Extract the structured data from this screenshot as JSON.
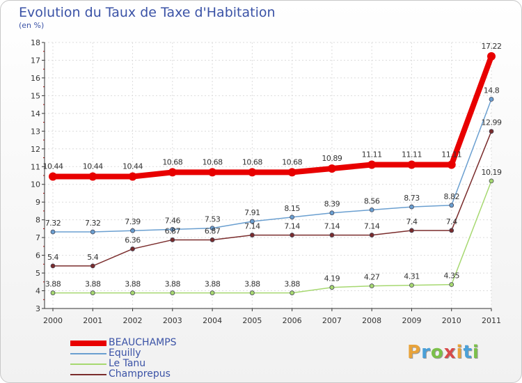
{
  "title": "Evolution du Taux de Taxe d'Habitation",
  "subtitle": "(en %)",
  "chart_data": {
    "type": "line",
    "title": "Evolution du Taux de Taxe d'Habitation",
    "subtitle": "(en %)",
    "xlabel": "",
    "ylabel": "",
    "x": [
      "2000",
      "2001",
      "2002",
      "2003",
      "2004",
      "2005",
      "2006",
      "2007",
      "2008",
      "2009",
      "2010",
      "2011"
    ],
    "ylim": [
      3,
      18
    ],
    "yticks": [
      3,
      4,
      5,
      6,
      7,
      8,
      9,
      10,
      11,
      12,
      13,
      14,
      15,
      16,
      17,
      18
    ],
    "grid": true,
    "legend_position": "bottom-left",
    "series": [
      {
        "name": "BEAUCHAMPS",
        "color": "#e80000",
        "values": [
          10.44,
          10.44,
          10.44,
          10.68,
          10.68,
          10.68,
          10.68,
          10.89,
          11.11,
          11.11,
          11.11,
          17.22
        ],
        "labels": [
          "10.44",
          "10.44",
          "10.44",
          "10.68",
          "10.68",
          "10.68",
          "10.68",
          "10.89",
          "11.11",
          "11.11",
          "11.11",
          "17.22"
        ]
      },
      {
        "name": "Equilly",
        "color": "#6a9fd0",
        "values": [
          7.32,
          7.32,
          7.39,
          7.46,
          7.53,
          7.91,
          8.15,
          8.39,
          8.56,
          8.73,
          8.82,
          14.8
        ],
        "labels": [
          "7.32",
          "7.32",
          "7.39",
          "7.46",
          "7.53",
          "7.91",
          "8.15",
          "8.39",
          "8.56",
          "8.73",
          "8.82",
          "14.8"
        ]
      },
      {
        "name": "Le Tanu",
        "color": "#a6d870",
        "values": [
          3.88,
          3.88,
          3.88,
          3.88,
          3.88,
          3.88,
          3.88,
          4.19,
          4.27,
          4.31,
          4.35,
          10.19
        ],
        "labels": [
          "3.88",
          "3.88",
          "3.88",
          "3.88",
          "3.88",
          "3.88",
          "3.88",
          "4.19",
          "4.27",
          "4.31",
          "4.35",
          "10.19"
        ]
      },
      {
        "name": "Champrepus",
        "color": "#7a2c2c",
        "values": [
          5.4,
          5.4,
          6.36,
          6.87,
          6.87,
          7.14,
          7.14,
          7.14,
          7.14,
          7.4,
          7.4,
          12.99
        ],
        "labels": [
          "5.4",
          "5.4",
          "6.36",
          "6.87",
          "6.87",
          "7.14",
          "7.14",
          "7.14",
          "7.14",
          "7.4",
          "7.4",
          "12.99"
        ]
      }
    ]
  },
  "logo": {
    "letters": [
      "P",
      "r",
      "o",
      "x",
      "i",
      "t",
      "i"
    ],
    "colors": [
      "#e8a33a",
      "#4aa0d8",
      "#7cc04a",
      "#d84a4a",
      "#e8a33a",
      "#4aa0d8",
      "#7cc04a"
    ]
  }
}
